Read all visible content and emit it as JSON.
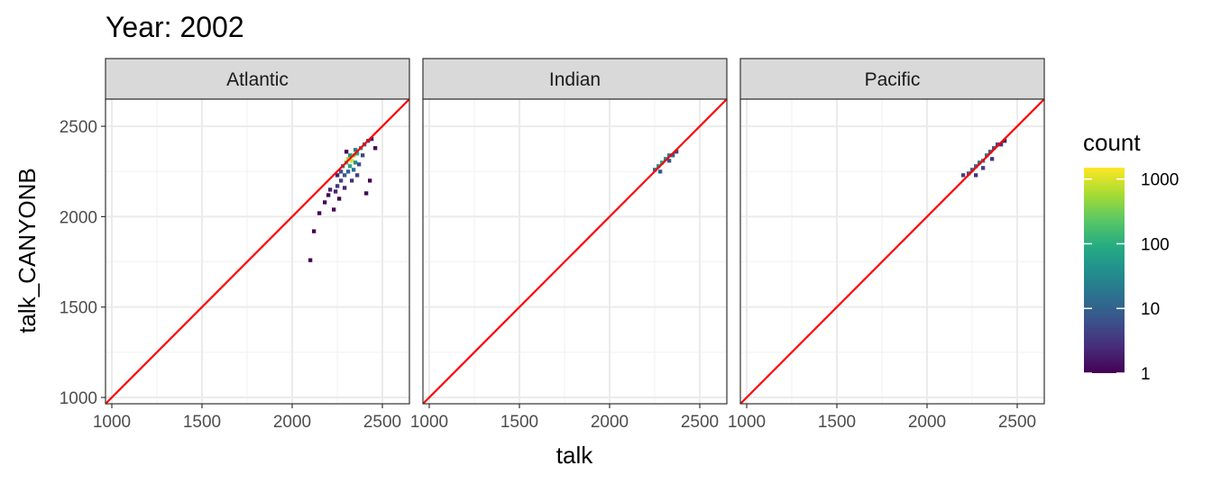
{
  "chart_data": {
    "type": "heatmap",
    "title": "Year: 2002",
    "xlabel": "talk",
    "ylabel": "talk_CANYONB",
    "xlim": [
      965,
      2650
    ],
    "ylim": [
      965,
      2650
    ],
    "x_ticks": [
      1000,
      1500,
      2000,
      2500
    ],
    "y_ticks": [
      1000,
      1500,
      2000,
      2500
    ],
    "grid": true,
    "reference_line": {
      "slope": 1,
      "intercept": 0,
      "color": "#ff0000"
    },
    "legend": {
      "title": "count",
      "position": "right",
      "scale": "log10",
      "range": [
        1,
        1500
      ],
      "ticks": [
        1,
        10,
        100,
        1000
      ],
      "tick_labels": [
        "1",
        "10",
        "100",
        "1000"
      ]
    },
    "bin_size": 20,
    "panels": [
      {
        "name": "Atlantic",
        "bins": [
          {
            "x": 2100,
            "y": 1760,
            "count": 1
          },
          {
            "x": 2120,
            "y": 1920,
            "count": 1
          },
          {
            "x": 2150,
            "y": 2020,
            "count": 1
          },
          {
            "x": 2180,
            "y": 2080,
            "count": 1
          },
          {
            "x": 2200,
            "y": 2120,
            "count": 1
          },
          {
            "x": 2210,
            "y": 2150,
            "count": 2
          },
          {
            "x": 2230,
            "y": 2040,
            "count": 1
          },
          {
            "x": 2240,
            "y": 2140,
            "count": 2
          },
          {
            "x": 2250,
            "y": 2170,
            "count": 3
          },
          {
            "x": 2250,
            "y": 2230,
            "count": 2
          },
          {
            "x": 2260,
            "y": 2100,
            "count": 1
          },
          {
            "x": 2270,
            "y": 2200,
            "count": 4
          },
          {
            "x": 2270,
            "y": 2250,
            "count": 6
          },
          {
            "x": 2280,
            "y": 2280,
            "count": 30
          },
          {
            "x": 2290,
            "y": 2160,
            "count": 2
          },
          {
            "x": 2290,
            "y": 2230,
            "count": 8
          },
          {
            "x": 2300,
            "y": 2300,
            "count": 150
          },
          {
            "x": 2300,
            "y": 2360,
            "count": 1
          },
          {
            "x": 2310,
            "y": 2250,
            "count": 10
          },
          {
            "x": 2310,
            "y": 2320,
            "count": 600
          },
          {
            "x": 2320,
            "y": 2280,
            "count": 80
          },
          {
            "x": 2320,
            "y": 2340,
            "count": 60
          },
          {
            "x": 2330,
            "y": 2200,
            "count": 3
          },
          {
            "x": 2330,
            "y": 2310,
            "count": 1000
          },
          {
            "x": 2340,
            "y": 2260,
            "count": 15
          },
          {
            "x": 2340,
            "y": 2340,
            "count": 400
          },
          {
            "x": 2350,
            "y": 2300,
            "count": 40
          },
          {
            "x": 2350,
            "y": 2370,
            "count": 20
          },
          {
            "x": 2360,
            "y": 2230,
            "count": 4
          },
          {
            "x": 2360,
            "y": 2350,
            "count": 100
          },
          {
            "x": 2370,
            "y": 2290,
            "count": 6
          },
          {
            "x": 2380,
            "y": 2380,
            "count": 30
          },
          {
            "x": 2390,
            "y": 2340,
            "count": 5
          },
          {
            "x": 2400,
            "y": 2400,
            "count": 12
          },
          {
            "x": 2410,
            "y": 2130,
            "count": 1
          },
          {
            "x": 2420,
            "y": 2420,
            "count": 5
          },
          {
            "x": 2430,
            "y": 2200,
            "count": 1
          },
          {
            "x": 2440,
            "y": 2430,
            "count": 2
          },
          {
            "x": 2460,
            "y": 2380,
            "count": 1
          }
        ]
      },
      {
        "name": "Indian",
        "bins": [
          {
            "x": 2250,
            "y": 2260,
            "count": 15
          },
          {
            "x": 2270,
            "y": 2280,
            "count": 40
          },
          {
            "x": 2290,
            "y": 2300,
            "count": 80
          },
          {
            "x": 2310,
            "y": 2320,
            "count": 40
          },
          {
            "x": 2330,
            "y": 2340,
            "count": 20
          },
          {
            "x": 2350,
            "y": 2340,
            "count": 10
          },
          {
            "x": 2370,
            "y": 2360,
            "count": 5
          },
          {
            "x": 2280,
            "y": 2250,
            "count": 8
          },
          {
            "x": 2330,
            "y": 2310,
            "count": 6
          }
        ]
      },
      {
        "name": "Pacific",
        "bins": [
          {
            "x": 2200,
            "y": 2230,
            "count": 4
          },
          {
            "x": 2230,
            "y": 2240,
            "count": 8
          },
          {
            "x": 2250,
            "y": 2260,
            "count": 10
          },
          {
            "x": 2270,
            "y": 2280,
            "count": 15
          },
          {
            "x": 2290,
            "y": 2300,
            "count": 20
          },
          {
            "x": 2310,
            "y": 2310,
            "count": 30
          },
          {
            "x": 2330,
            "y": 2340,
            "count": 20
          },
          {
            "x": 2350,
            "y": 2360,
            "count": 10
          },
          {
            "x": 2370,
            "y": 2380,
            "count": 8
          },
          {
            "x": 2390,
            "y": 2400,
            "count": 5
          },
          {
            "x": 2410,
            "y": 2400,
            "count": 3
          },
          {
            "x": 2430,
            "y": 2420,
            "count": 2
          },
          {
            "x": 2270,
            "y": 2230,
            "count": 3
          },
          {
            "x": 2310,
            "y": 2270,
            "count": 4
          },
          {
            "x": 2360,
            "y": 2320,
            "count": 3
          }
        ]
      }
    ]
  }
}
